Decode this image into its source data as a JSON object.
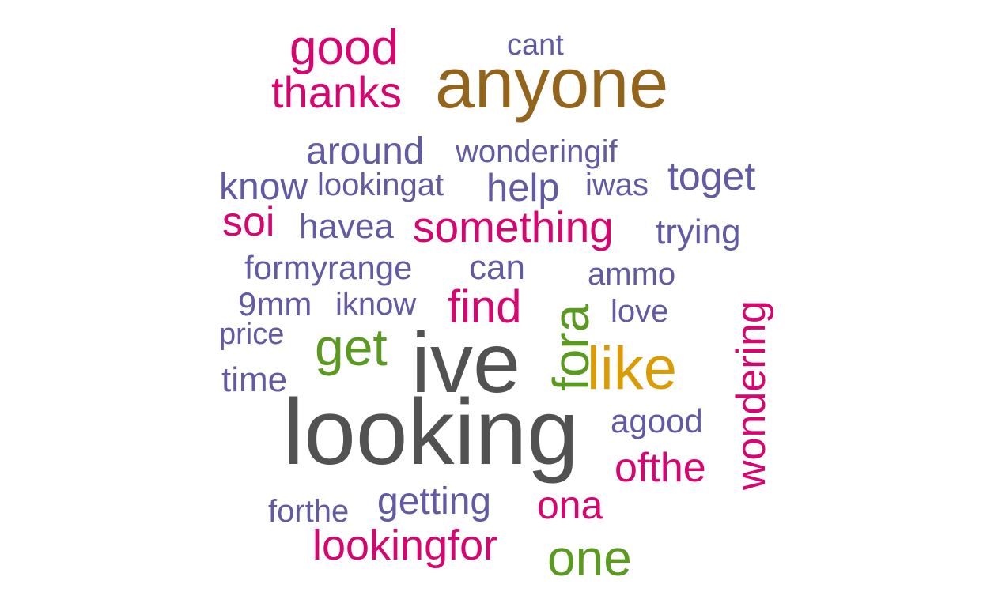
{
  "colors": {
    "gray": "#525252",
    "brown": "#93651c",
    "green": "#5b9a20",
    "gold": "#d99c04",
    "magenta": "#d6056f",
    "purple": "#625aa2"
  },
  "words": [
    {
      "text": "looking",
      "color": "gray"
    },
    {
      "text": "ive",
      "color": "gray"
    },
    {
      "text": "anyone",
      "color": "brown"
    },
    {
      "text": "like",
      "color": "gold"
    },
    {
      "text": "fora",
      "color": "green"
    },
    {
      "text": "get",
      "color": "green"
    },
    {
      "text": "one",
      "color": "green"
    },
    {
      "text": "good",
      "color": "magenta"
    },
    {
      "text": "thanks",
      "color": "magenta"
    },
    {
      "text": "something",
      "color": "magenta"
    },
    {
      "text": "find",
      "color": "magenta"
    },
    {
      "text": "soi",
      "color": "magenta"
    },
    {
      "text": "wondering",
      "color": "magenta"
    },
    {
      "text": "ofthe",
      "color": "magenta"
    },
    {
      "text": "ona",
      "color": "magenta"
    },
    {
      "text": "lookingfor",
      "color": "magenta"
    },
    {
      "text": "cant",
      "color": "purple"
    },
    {
      "text": "around",
      "color": "purple"
    },
    {
      "text": "wonderingif",
      "color": "purple"
    },
    {
      "text": "know",
      "color": "purple"
    },
    {
      "text": "lookingat",
      "color": "purple"
    },
    {
      "text": "help",
      "color": "purple"
    },
    {
      "text": "iwas",
      "color": "purple"
    },
    {
      "text": "toget",
      "color": "purple"
    },
    {
      "text": "havea",
      "color": "purple"
    },
    {
      "text": "trying",
      "color": "purple"
    },
    {
      "text": "formyrange",
      "color": "purple"
    },
    {
      "text": "can",
      "color": "purple"
    },
    {
      "text": "ammo",
      "color": "purple"
    },
    {
      "text": "9mm",
      "color": "purple"
    },
    {
      "text": "iknow",
      "color": "purple"
    },
    {
      "text": "love",
      "color": "purple"
    },
    {
      "text": "price",
      "color": "purple"
    },
    {
      "text": "time",
      "color": "purple"
    },
    {
      "text": "agood",
      "color": "purple"
    },
    {
      "text": "getting",
      "color": "purple"
    },
    {
      "text": "forthe",
      "color": "purple"
    }
  ]
}
